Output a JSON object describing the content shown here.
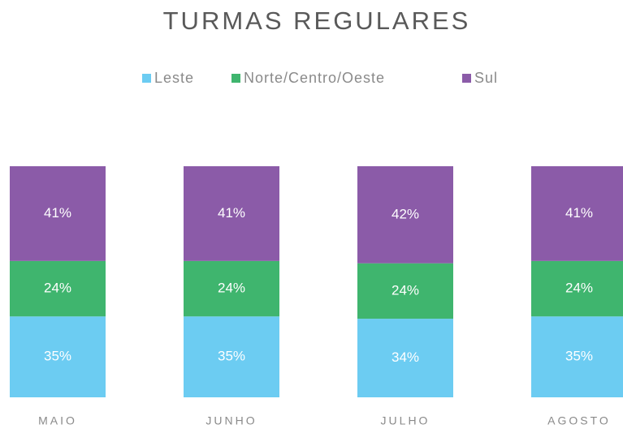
{
  "chart_data": {
    "type": "stacked_bar",
    "title": "TURMAS REGULARES",
    "categories": [
      "MAIO",
      "JUNHO",
      "JULHO",
      "AGOSTO"
    ],
    "ylim": [
      0,
      100
    ],
    "legend": "top",
    "series": [
      {
        "name": "Leste",
        "color": "#6cccf2",
        "values": [
          35,
          35,
          34,
          35
        ],
        "value_labels": [
          "35%",
          "35%",
          "34%",
          "35%"
        ]
      },
      {
        "name": "Norte/Centro/Oeste",
        "color": "#3fb56e",
        "values": [
          24,
          24,
          24,
          24
        ],
        "value_labels": [
          "24%",
          "24%",
          "24%",
          "24%"
        ]
      },
      {
        "name": "Sul",
        "color": "#8b5ba8",
        "values": [
          41,
          41,
          42,
          41
        ],
        "value_labels": [
          "41%",
          "41%",
          "42%",
          "41%"
        ]
      }
    ]
  }
}
